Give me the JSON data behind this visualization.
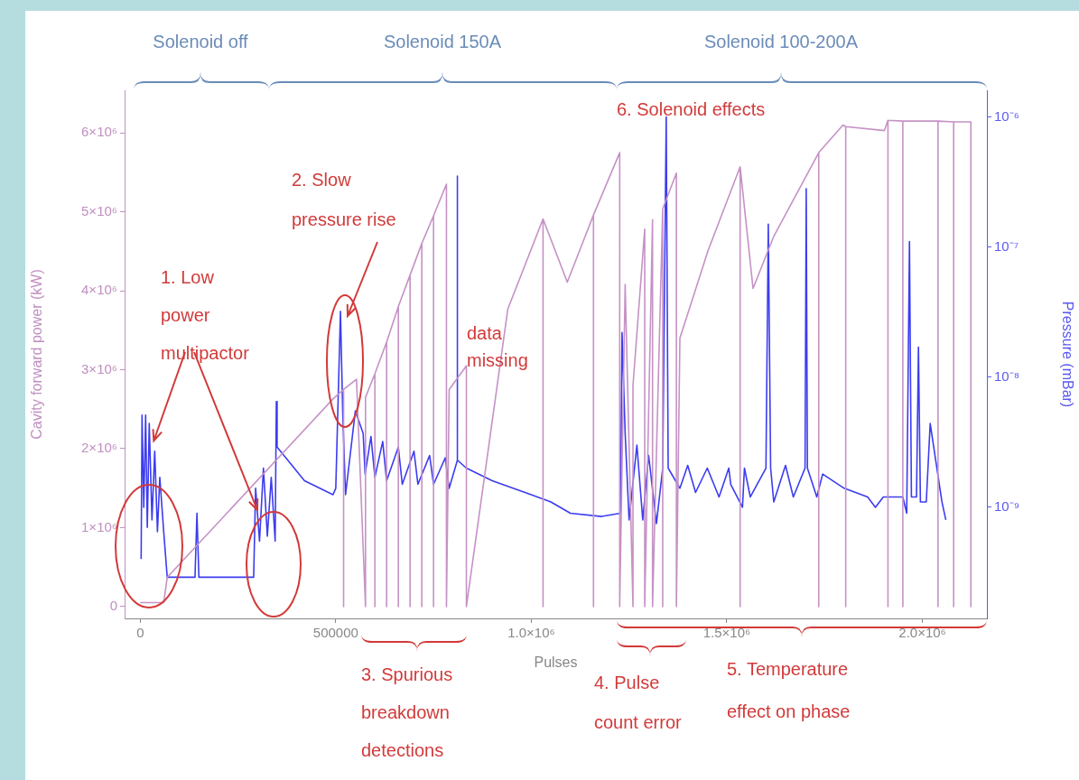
{
  "chart_data": {
    "type": "line",
    "xlabel": "Pulses",
    "ylabel": "Cavity forward power (kW)",
    "y2label": "Pressure (mBar)",
    "xlim": [
      -40000,
      2165000
    ],
    "xticks": [
      0,
      500000,
      {
        "value": 1000000,
        "label": "1.0×10⁶"
      },
      {
        "value": 1500000,
        "label": "1.5×10⁶"
      },
      {
        "value": 2000000,
        "label": "2.0×10⁶"
      }
    ],
    "ylim": [
      -150000,
      6540000
    ],
    "yticks": [
      0,
      {
        "value": 1000000,
        "label": "1×10⁶"
      },
      {
        "value": 2000000,
        "label": "2×10⁶"
      },
      {
        "value": 3000000,
        "label": "3×10⁶"
      },
      {
        "value": 4000000,
        "label": "4×10⁶"
      },
      {
        "value": 5000000,
        "label": "5×10⁶"
      },
      {
        "value": 6000000,
        "label": "6×10⁶"
      }
    ],
    "y2lim": [
      1.4e-10,
      1.6e-06
    ],
    "y2ticks": [
      {
        "value": 1e-09,
        "label": "10⁻⁹"
      },
      {
        "value": 1e-08,
        "label": "10⁻⁸"
      },
      {
        "value": 1e-07,
        "label": "10⁻⁷"
      },
      {
        "value": 1e-06,
        "label": "10⁻⁶"
      }
    ],
    "log": "y2",
    "grid": false,
    "legend": false,
    "marker": "none",
    "line_style": "solid",
    "series": [
      {
        "color": "#c592c5",
        "x": [
          0,
          60000,
          69000,
          493000,
          520000,
          520000,
          520000,
          553000,
          576000,
          576000,
          600000,
          600000,
          600000,
          630000,
          630000,
          630000,
          660000,
          660000,
          660000,
          690000,
          690000,
          690000,
          720000,
          720000,
          720000,
          750000,
          750000,
          750000,
          783000,
          783000,
          790000,
          834000,
          834000,
          940000,
          1030000,
          1030000,
          1030000,
          1092000,
          1159000,
          1159000,
          1159000,
          1226000,
          1226000,
          1240000,
          1260000,
          1260000,
          1290000,
          1290000,
          1310000,
          1310000,
          1336000,
          1336000,
          1336000,
          1371000,
          1371000,
          1380000,
          1452000,
          1534000,
          1534000,
          1534000,
          1567000,
          1620000,
          1735000,
          1735000,
          1735000,
          1797000,
          1804000,
          1804000,
          1804000,
          1903000,
          1912000,
          1912000,
          1912000,
          1950000,
          1950000,
          1950000,
          2040000,
          2040000,
          2040000,
          2080000,
          2080000,
          2080000,
          2124000,
          2124000
        ],
        "values": [
          50000,
          50000,
          370000,
          2630000,
          2750000,
          0,
          2750000,
          2880000,
          0,
          2650000,
          2950000,
          0,
          2950000,
          3350000,
          0,
          3350000,
          3800000,
          0,
          3800000,
          4200000,
          0,
          4200000,
          4600000,
          0,
          4600000,
          4950000,
          0,
          4950000,
          5350000,
          0,
          2750000,
          3050000,
          0,
          3770000,
          4910000,
          0,
          4910000,
          4110000,
          4960000,
          0,
          4960000,
          5750000,
          0,
          4080000,
          0,
          2800000,
          4780000,
          0,
          4900000,
          0,
          5040000,
          0,
          5040000,
          5490000,
          0,
          3400000,
          4510000,
          5570000,
          0,
          5570000,
          4030000,
          4690000,
          5750000,
          0,
          5750000,
          6100000,
          6080000,
          0,
          6080000,
          6030000,
          6160000,
          0,
          6160000,
          6150000,
          0,
          6150000,
          6150000,
          0,
          6150000,
          6140000,
          0,
          6140000,
          6140000,
          0
        ]
      },
      {
        "color": "#3c3cf0",
        "axis": "y2",
        "x": [
          2300,
          4600,
          9000,
          13800,
          18000,
          23000,
          30000,
          37000,
          44000,
          50000,
          60000,
          69000,
          140000,
          145000,
          150000,
          290000,
          295000,
          305000,
          315000,
          325000,
          335000,
          345000,
          348000,
          350000,
          420000,
          493000,
          500000,
          512000,
          518000,
          525000,
          550000,
          570000,
          575000,
          590000,
          600000,
          620000,
          630000,
          660000,
          670000,
          700000,
          710000,
          740000,
          750000,
          780000,
          790000,
          811000,
          811000,
          811000,
          834000,
          900000,
          1000000,
          1050000,
          1100000,
          1180000,
          1228000,
          1232000,
          1240000,
          1250000,
          1270000,
          1285000,
          1300000,
          1320000,
          1336000,
          1345000,
          1350000,
          1380000,
          1400000,
          1420000,
          1450000,
          1480000,
          1505000,
          1510000,
          1540000,
          1545000,
          1560000,
          1600000,
          1606000,
          1612000,
          1620000,
          1650000,
          1670000,
          1700000,
          1703000,
          1706000,
          1730000,
          1745000,
          1800000,
          1860000,
          1880000,
          1900000,
          1950000,
          1960000,
          1967000,
          1972000,
          1985000,
          1990000,
          1995000,
          2010000,
          2020000,
          2050000,
          2060000
        ],
        "values": [
          4e-10,
          5.1e-09,
          1e-09,
          5.1e-09,
          7e-10,
          4.4e-09,
          8e-10,
          2.7e-09,
          6.5e-10,
          1.7e-09,
          6.5e-10,
          2.9e-10,
          2.9e-10,
          9e-10,
          2.9e-10,
          2.9e-10,
          1.4e-09,
          5.5e-10,
          2e-09,
          6e-10,
          1.7e-09,
          5.5e-10,
          6.5e-09,
          2.9e-09,
          1.6e-09,
          1.25e-09,
          1.4e-09,
          3.2e-08,
          5e-09,
          1.25e-09,
          5.5e-09,
          3.7e-09,
          1.8e-09,
          3.5e-09,
          1.7e-09,
          3.2e-09,
          1.6e-09,
          2.9e-09,
          1.5e-09,
          2.7e-09,
          1.5e-09,
          2.5e-09,
          1.5e-09,
          2.4e-09,
          1.4e-09,
          2.3e-09,
          3.5e-07,
          2.3e-09,
          2e-09,
          1.6e-09,
          1.25e-09,
          1.1e-09,
          9e-10,
          8.5e-10,
          9e-10,
          2.2e-08,
          3.7e-09,
          8e-10,
          3e-09,
          8e-10,
          2.5e-09,
          7.5e-10,
          2e-09,
          1e-06,
          2e-09,
          1.4e-09,
          2.1e-09,
          1.3e-09,
          2e-09,
          1.2e-09,
          2e-09,
          1.5e-09,
          1e-09,
          2e-09,
          1.2e-09,
          2e-09,
          1.5e-07,
          2e-09,
          1.1e-09,
          2.1e-09,
          1.2e-09,
          2e-09,
          2.8e-07,
          2e-09,
          1.2e-09,
          1.8e-09,
          1.4e-09,
          1.2e-09,
          1e-09,
          1.2e-09,
          1.2e-09,
          9e-10,
          1.1e-07,
          1.2e-09,
          1.2e-09,
          1.7e-08,
          1.1e-09,
          1.1e-09,
          4.4e-09,
          1.1e-09,
          8e-10
        ]
      }
    ],
    "annotations": [
      "Solenoid off",
      "Solenoid 150A",
      "Solenoid 100-200A",
      {
        "text": "1. Low power multipactor",
        "x": 34600,
        "y": 2100000
      },
      "2. Slow pressure rise",
      "data missing",
      "6. Solenoid effects",
      "3. Spurious breakdown detections",
      "4. Pulse count error",
      "5. Temperature effect on phase"
    ]
  }
}
